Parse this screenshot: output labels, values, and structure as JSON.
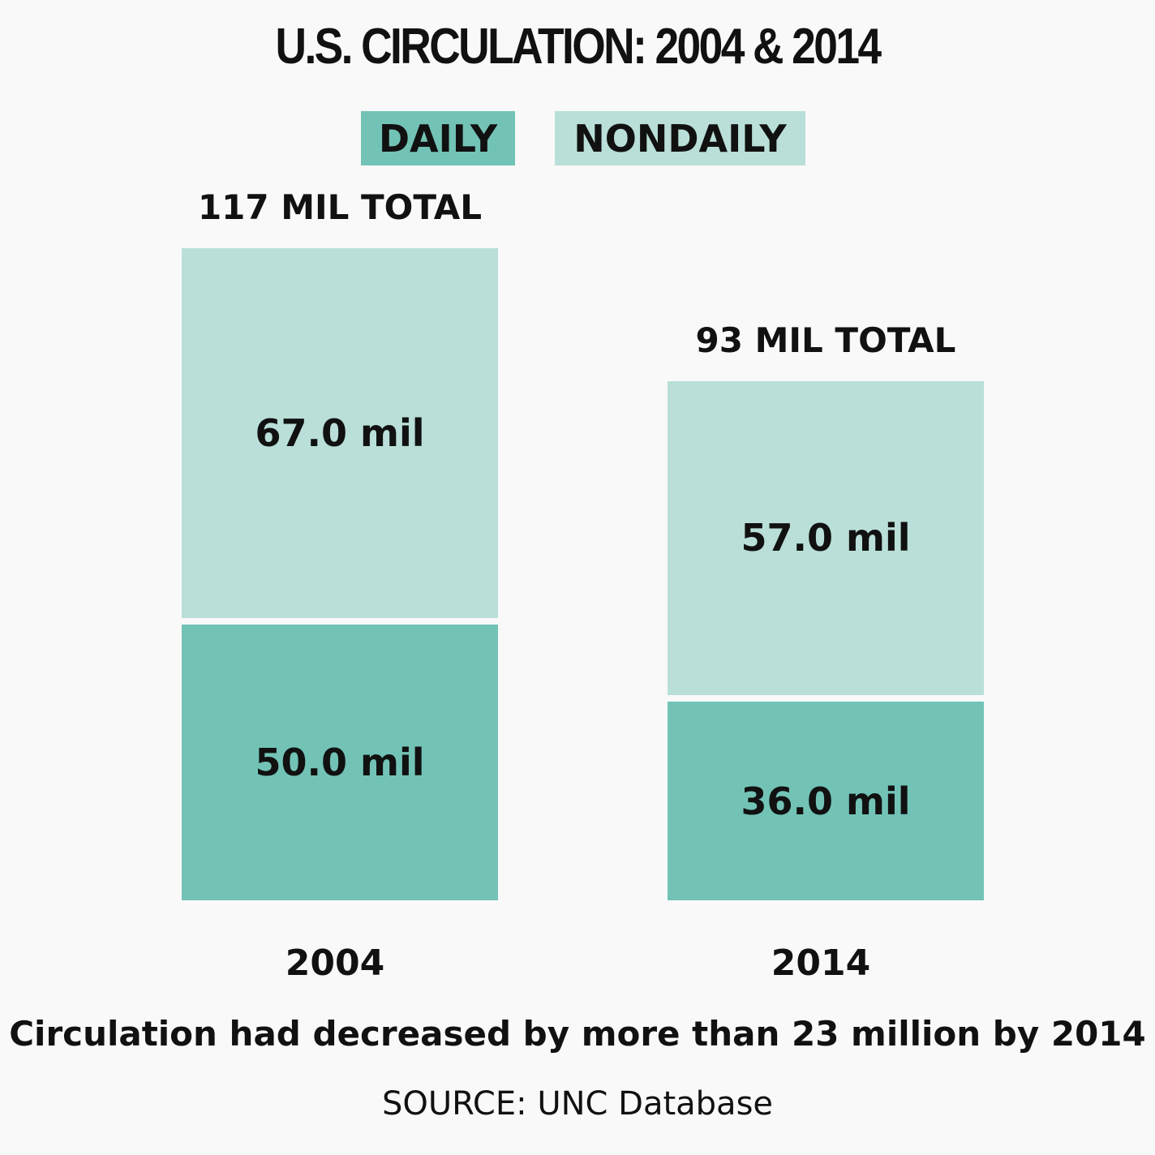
{
  "title": "U.S. CIRCULATION: 2004 & 2014",
  "legend": [
    {
      "label": "DAILY",
      "color": "#72c3b6"
    },
    {
      "label": "NONDAILY",
      "color": "#b9dfd8"
    }
  ],
  "chart_data": {
    "type": "bar",
    "stacked": true,
    "categories": [
      "2004",
      "2014"
    ],
    "series": [
      {
        "name": "DAILY",
        "values": [
          50.0,
          36.0
        ],
        "labels": [
          "50.0 mil",
          "36.0 mil"
        ],
        "color": "#72c3b6"
      },
      {
        "name": "NONDAILY",
        "values": [
          67.0,
          57.0
        ],
        "labels": [
          "67.0 mil",
          "57.0 mil"
        ],
        "color": "#b9dfd8"
      }
    ],
    "totals": [
      "117 MIL TOTAL",
      "93 MIL TOTAL"
    ],
    "grid": false,
    "legend_position": "top"
  },
  "caption": "Circulation had decreased by more than 23 million by 2014",
  "source": "SOURCE: UNC Database"
}
